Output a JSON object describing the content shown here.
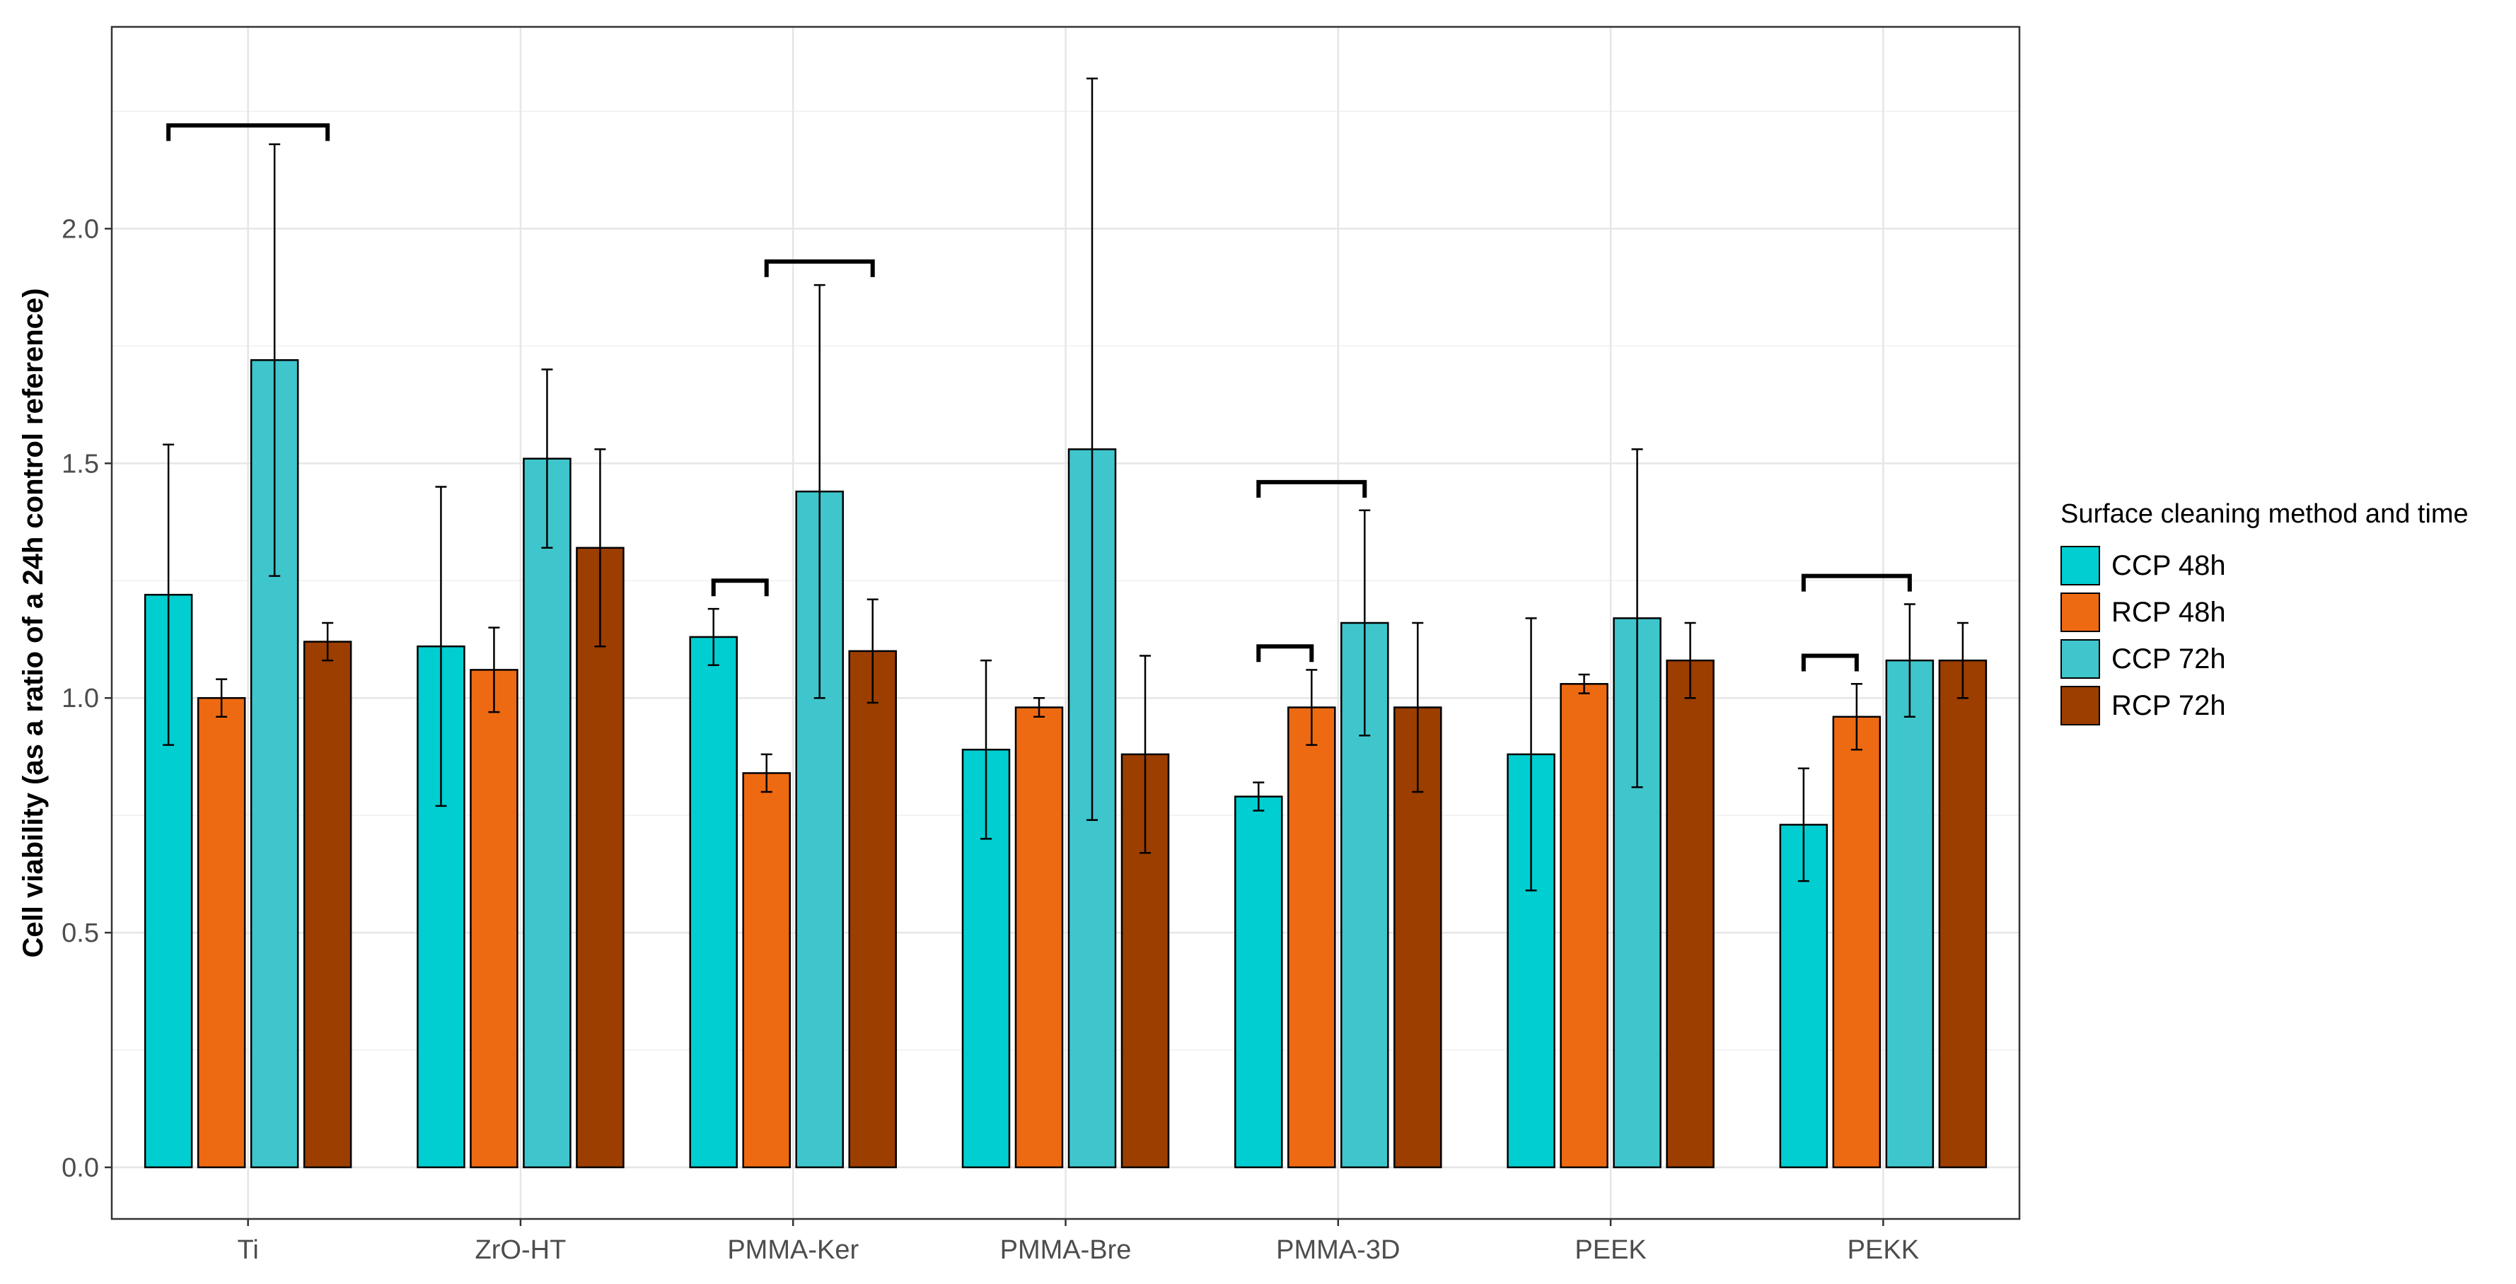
{
  "chart_data": {
    "type": "bar",
    "title": "",
    "xlabel": "",
    "ylabel": "Cell viability (as a ratio of a 24h control reference)",
    "ylim": [
      -0.11,
      2.43
    ],
    "yticks": [
      0.0,
      0.5,
      1.0,
      1.5,
      2.0
    ],
    "ytick_labels": [
      "0.0",
      "0.5",
      "1.0",
      "1.5",
      "2.0"
    ],
    "grid": true,
    "legend_position": "right",
    "legend_title": "Surface cleaning method and time",
    "categories": [
      "Ti",
      "ZrO-HT",
      "PMMA-Ker",
      "PMMA-Bre",
      "PMMA-3D",
      "PEEK",
      "PEKK"
    ],
    "series": [
      {
        "name": "CCP 48h",
        "color": "#00CED1",
        "values": [
          1.22,
          1.11,
          1.13,
          0.89,
          0.79,
          0.88,
          0.73
        ],
        "errors": [
          0.32,
          0.34,
          0.06,
          0.19,
          0.03,
          0.29,
          0.12
        ]
      },
      {
        "name": "RCP 48h",
        "color": "#EE6A12",
        "values": [
          1.0,
          1.06,
          0.84,
          0.98,
          0.98,
          1.03,
          0.96
        ],
        "errors": [
          0.04,
          0.09,
          0.04,
          0.02,
          0.08,
          0.02,
          0.07
        ]
      },
      {
        "name": "CCP 72h",
        "color": "#3FC6CD",
        "values": [
          1.72,
          1.51,
          1.44,
          1.53,
          1.16,
          1.17,
          1.08
        ],
        "errors": [
          0.46,
          0.19,
          0.44,
          0.79,
          0.24,
          0.36,
          0.12
        ]
      },
      {
        "name": "RCP 72h",
        "color": "#9B3E00",
        "values": [
          1.12,
          1.32,
          1.1,
          0.88,
          0.98,
          1.08,
          1.08
        ],
        "errors": [
          0.04,
          0.21,
          0.11,
          0.21,
          0.18,
          0.08,
          0.08
        ]
      }
    ],
    "brackets": [
      {
        "category": "Ti",
        "from_series": 0,
        "to_series": 3,
        "y": 2.22
      },
      {
        "category": "PMMA-Ker",
        "from_series": 0,
        "to_series": 1,
        "y": 1.25
      },
      {
        "category": "PMMA-Ker",
        "from_series": 1,
        "to_series": 3,
        "y": 1.93
      },
      {
        "category": "PMMA-3D",
        "from_series": 0,
        "to_series": 1,
        "y": 1.11
      },
      {
        "category": "PMMA-3D",
        "from_series": 0,
        "to_series": 2,
        "y": 1.46
      },
      {
        "category": "PEKK",
        "from_series": 0,
        "to_series": 1,
        "y": 1.09
      },
      {
        "category": "PEKK",
        "from_series": 0,
        "to_series": 2,
        "y": 1.26
      }
    ]
  }
}
